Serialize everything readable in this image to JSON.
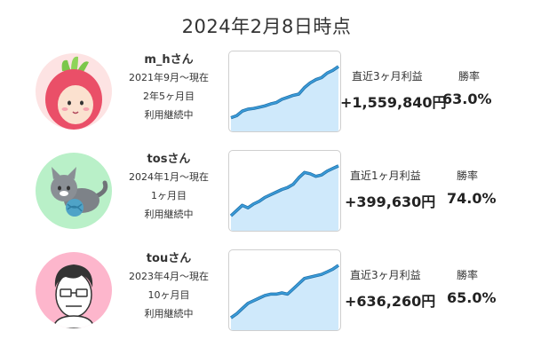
{
  "title": "2024年2月8日時点",
  "rows": [
    {
      "name": "m_hさん",
      "period": "2021年9月～現在",
      "duration": "2年5ヶ月目",
      "status": "利用継続中",
      "profit_label": "直近3ヶ月利益",
      "profit": "+1,559,840円",
      "winrate_label": "勝率",
      "winrate": "63.0%",
      "avatar_icon": "radish-girl-avatar-icon",
      "chart_data": {
        "type": "line",
        "x": [
          1,
          2,
          3,
          4,
          5,
          6,
          7,
          8,
          9,
          10,
          11,
          12,
          13,
          14,
          15,
          16,
          17,
          18,
          19,
          20
        ],
        "values": [
          10,
          13,
          20,
          23,
          24,
          26,
          28,
          31,
          33,
          38,
          41,
          44,
          46,
          56,
          63,
          68,
          71,
          78,
          82,
          88
        ],
        "ylim": [
          0,
          100
        ]
      }
    },
    {
      "name": "tosさん",
      "period": "2024年1月～現在",
      "duration": "1ヶ月目",
      "status": "利用継続中",
      "profit_label": "直近1ヶ月利益",
      "profit": "+399,630円",
      "winrate_label": "勝率",
      "winrate": "74.0%",
      "avatar_icon": "cat-with-yarn-avatar-icon",
      "chart_data": {
        "type": "line",
        "x": [
          1,
          2,
          3,
          4,
          5,
          6,
          7,
          8,
          9,
          10,
          11,
          12,
          13,
          14,
          15,
          16,
          17,
          18,
          19,
          20
        ],
        "values": [
          12,
          20,
          28,
          24,
          30,
          34,
          40,
          44,
          48,
          52,
          55,
          60,
          70,
          78,
          76,
          72,
          74,
          80,
          84,
          88
        ],
        "ylim": [
          0,
          100
        ]
      }
    },
    {
      "name": "touさん",
      "period": "2023年4月～現在",
      "duration": "10ヶ月目",
      "status": "利用継続中",
      "profit_label": "直近3ヶ月利益",
      "profit": "+636,260円",
      "winrate_label": "勝率",
      "winrate": "65.0%",
      "avatar_icon": "man-with-glasses-avatar-icon",
      "chart_data": {
        "type": "line",
        "x": [
          1,
          2,
          3,
          4,
          5,
          6,
          7,
          8,
          9,
          10,
          11,
          12,
          13,
          14,
          15,
          16,
          17,
          18,
          19,
          20
        ],
        "values": [
          8,
          14,
          22,
          30,
          34,
          38,
          42,
          44,
          44,
          46,
          44,
          52,
          60,
          68,
          70,
          72,
          74,
          78,
          82,
          88
        ],
        "ylim": [
          0,
          100
        ]
      }
    }
  ],
  "colors": {
    "line": "#3a9bd8",
    "fill": "#cfe9fb",
    "border": "#cfcfcf",
    "text": "#333333"
  }
}
